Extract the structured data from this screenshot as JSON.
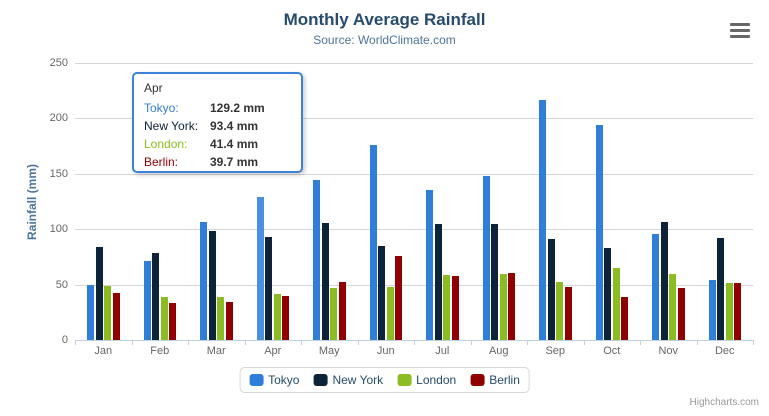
{
  "header": {
    "title": "Monthly Average Rainfall",
    "subtitle": "Source: WorldClimate.com"
  },
  "y_axis": {
    "title": "Rainfall (mm)",
    "ticks": [
      0,
      50,
      100,
      150,
      200,
      250
    ]
  },
  "chart_data": {
    "type": "bar",
    "title": "Monthly Average Rainfall",
    "subtitle": "Source: WorldClimate.com",
    "xlabel": "",
    "ylabel": "Rainfall (mm)",
    "ylim": [
      0,
      250
    ],
    "ytick_interval": 50,
    "grid": true,
    "legend_position": "bottom",
    "categories": [
      "Jan",
      "Feb",
      "Mar",
      "Apr",
      "May",
      "Jun",
      "Jul",
      "Aug",
      "Sep",
      "Oct",
      "Nov",
      "Dec"
    ],
    "series": [
      {
        "name": "Tokyo",
        "color": "#2f7ed8",
        "values": [
          49.9,
          71.5,
          106.4,
          129.2,
          144.0,
          176.0,
          135.6,
          148.5,
          216.4,
          194.1,
          95.6,
          54.4
        ]
      },
      {
        "name": "New York",
        "color": "#0d233a",
        "values": [
          83.6,
          78.8,
          98.5,
          93.4,
          106.0,
          84.5,
          105.0,
          104.3,
          91.2,
          83.5,
          106.6,
          92.3
        ]
      },
      {
        "name": "London",
        "color": "#8bbc21",
        "values": [
          48.9,
          38.8,
          39.3,
          41.4,
          47.0,
          48.3,
          59.0,
          59.6,
          52.4,
          65.2,
          59.3,
          51.2
        ]
      },
      {
        "name": "Berlin",
        "color": "#910000",
        "values": [
          42.4,
          33.2,
          34.5,
          39.7,
          52.6,
          75.5,
          57.4,
          60.4,
          47.6,
          39.1,
          46.8,
          51.1
        ]
      }
    ],
    "highlight": {
      "series": "Tokyo",
      "category": "Apr",
      "hover_color": "#4a90e2"
    }
  },
  "tooltip": {
    "header": "Apr",
    "rows": [
      {
        "label": "Tokyo:",
        "value": "129.2 mm",
        "color": "#2f7ed8"
      },
      {
        "label": "New York:",
        "value": "93.4 mm",
        "color": "#0d233a"
      },
      {
        "label": "London:",
        "value": "41.4 mm",
        "color": "#8bbc21"
      },
      {
        "label": "Berlin:",
        "value": "39.7 mm",
        "color": "#910000"
      }
    ]
  },
  "legend": {
    "items": [
      "Tokyo",
      "New York",
      "London",
      "Berlin"
    ]
  },
  "credits": {
    "label": "Highcharts.com"
  }
}
